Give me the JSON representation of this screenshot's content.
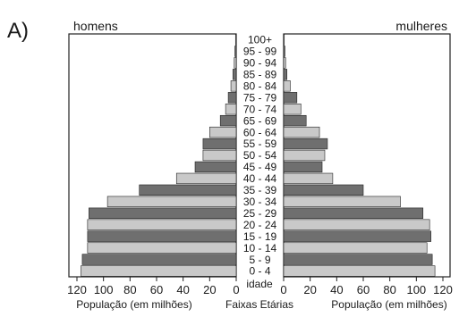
{
  "figure_label": "A)",
  "chart_data": {
    "type": "bar",
    "subtype": "population-pyramid",
    "left_title": "homens",
    "right_title": "mulheres",
    "center_label": "Faixas Etárias",
    "center_axis_word": "idade",
    "xlabel_left": "População (em milhões)",
    "xlabel_right": "População (em milhões)",
    "xlim": [
      0,
      120
    ],
    "x_ticks": [
      120,
      100,
      80,
      60,
      40,
      20,
      0
    ],
    "x_ticks_right": [
      0,
      20,
      40,
      60,
      80,
      100,
      120
    ],
    "grid": false,
    "legend": "none",
    "categories": [
      "100+",
      "95 - 99",
      "90 - 94",
      "85 - 89",
      "80 - 84",
      "75 - 79",
      "70 - 74",
      "65 - 69",
      "60 - 64",
      "55 - 59",
      "50 - 54",
      "45 - 49",
      "40 - 44",
      "35 - 39",
      "30 - 34",
      "25 - 29",
      "20 - 24",
      "15 - 19",
      "10 - 14",
      "5 - 9",
      "0 - 4"
    ],
    "series": [
      {
        "side": "left",
        "values": [
          0.5,
          1,
          1.5,
          2.5,
          4,
          6,
          8,
          12,
          20,
          25,
          25,
          31,
          45,
          73,
          97,
          111,
          112,
          112,
          112,
          116,
          117
        ]
      },
      {
        "side": "right",
        "values": [
          0.5,
          1,
          1.5,
          2.5,
          5,
          10,
          13,
          17,
          27,
          33,
          31,
          29,
          37,
          60,
          88,
          105,
          110,
          111,
          108,
          112,
          114
        ]
      }
    ],
    "colors": {
      "dark": "#6f6f6f",
      "light": "#c9c9c9",
      "stroke": "#222222"
    }
  }
}
